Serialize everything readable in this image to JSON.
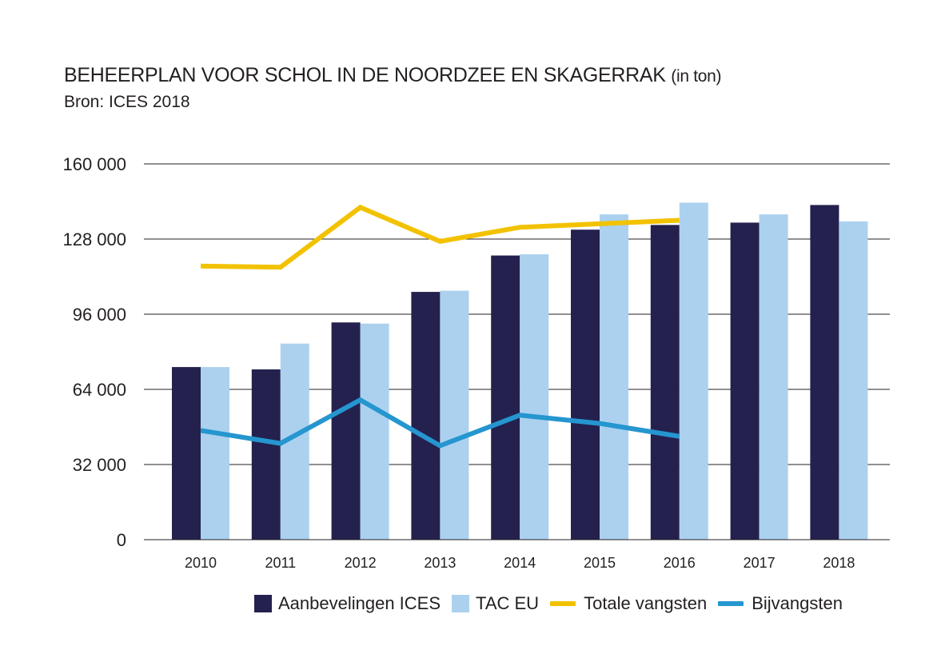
{
  "chart_data": {
    "type": "bar",
    "title": "BEHEERPLAN VOOR SCHOL IN DE NOORDZEE EN SKAGERRAK",
    "title_unit": "(in ton)",
    "subtitle": "Bron: ICES 2018",
    "categories": [
      "2010",
      "2011",
      "2012",
      "2013",
      "2014",
      "2015",
      "2016",
      "2017",
      "2018"
    ],
    "ylim": [
      0,
      160000
    ],
    "yticks": [
      0,
      32000,
      64000,
      96000,
      128000,
      160000
    ],
    "ytick_labels": [
      "0",
      "32 000",
      "64 000",
      "96 000",
      "128 000",
      "160 000"
    ],
    "grid": true,
    "legend_position": "bottom",
    "series": [
      {
        "name": "Aanbevelingen ICES",
        "type": "bar",
        "color": "#24214f",
        "values": [
          73500,
          72500,
          92500,
          105500,
          121000,
          132000,
          134000,
          135000,
          142500
        ]
      },
      {
        "name": "TAC EU",
        "type": "bar",
        "color": "#abd1ef",
        "values": [
          73500,
          83500,
          92000,
          106000,
          121500,
          138500,
          143500,
          138500,
          135500
        ]
      },
      {
        "name": "Totale vangsten",
        "type": "line",
        "color": "#f2c200",
        "values": [
          116500,
          116000,
          141500,
          127000,
          133000,
          134500,
          136000,
          null,
          null
        ]
      },
      {
        "name": "Bijvangsten",
        "type": "line",
        "color": "#2596cf",
        "values": [
          46500,
          41000,
          59500,
          40000,
          53000,
          49500,
          44000,
          null,
          null
        ]
      }
    ]
  }
}
